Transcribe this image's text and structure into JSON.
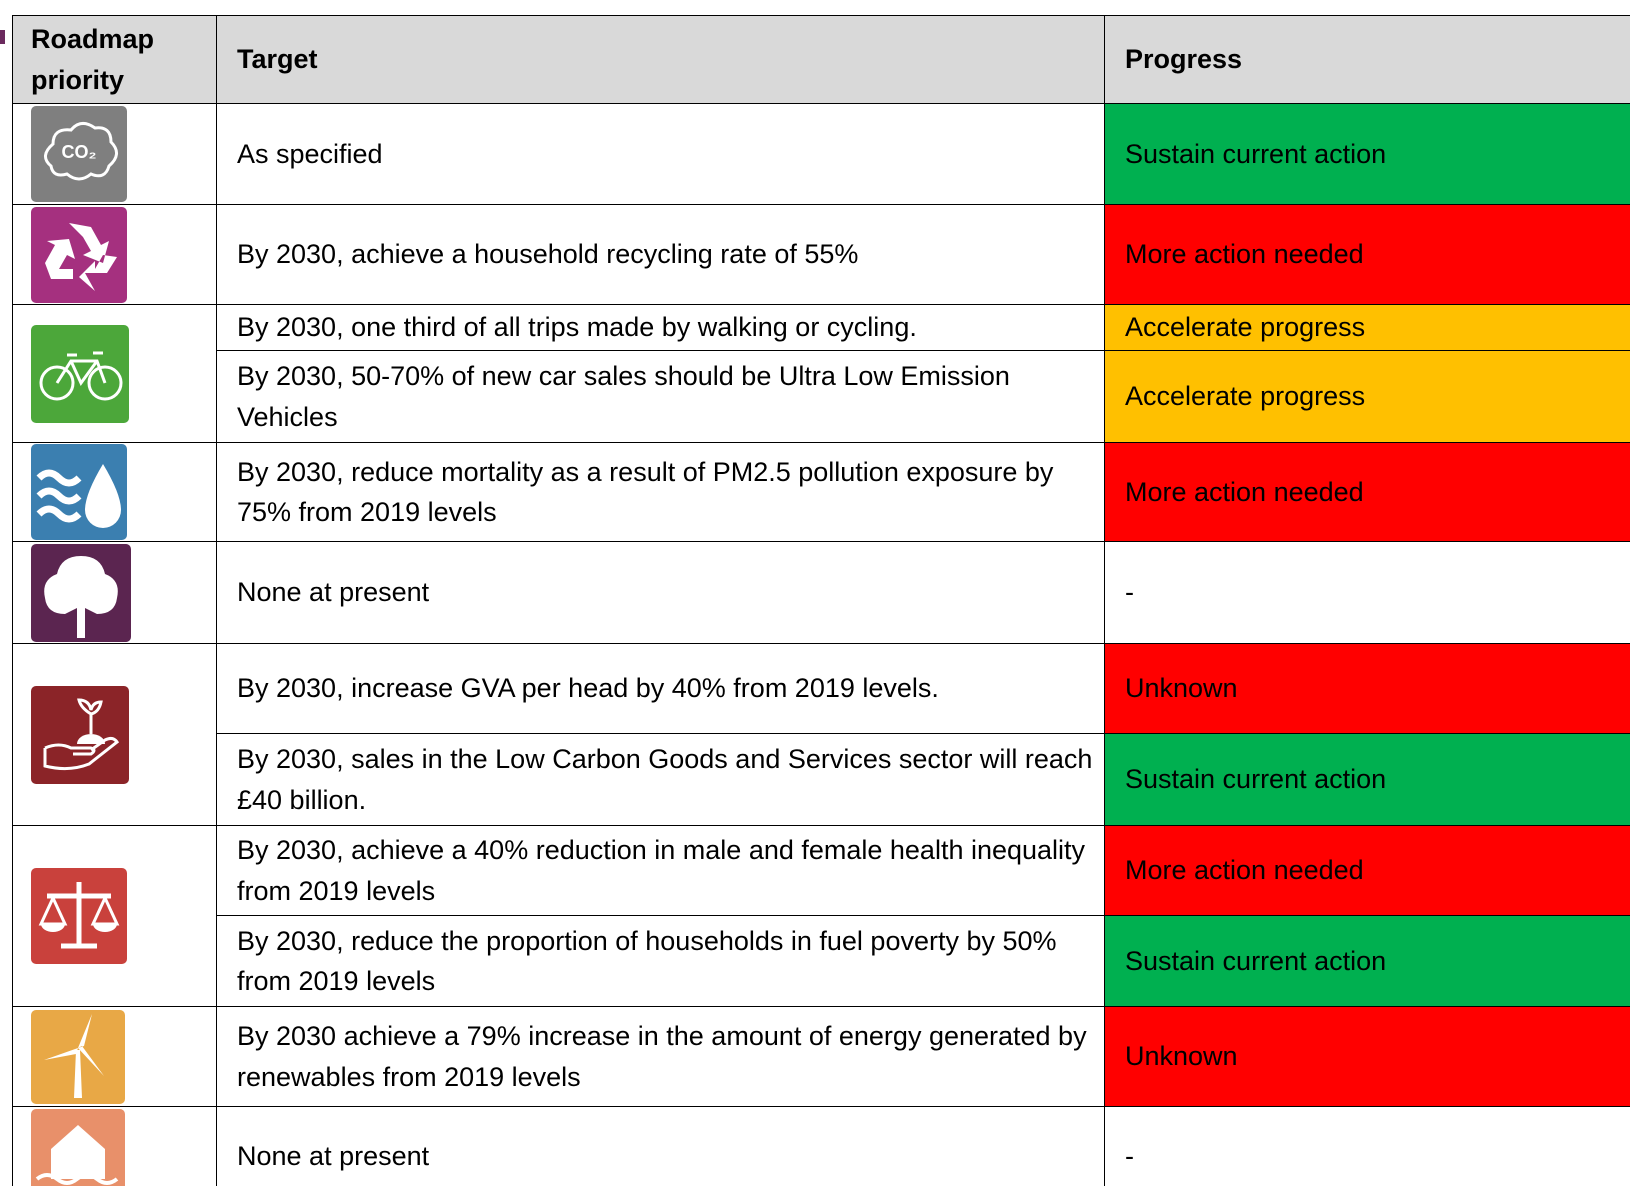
{
  "table": {
    "header": [
      "Roadmap priority",
      "Target",
      "Progress"
    ],
    "rows": [
      {
        "target": "As specified",
        "progress": "Sustain current action",
        "color": "#00b050"
      },
      {
        "target": "By 2030, achieve a household recycling rate of 55%",
        "progress": "More action needed",
        "color": "#ff0000"
      },
      {
        "target": "By 2030, one third of all trips made by walking or cycling.",
        "progress": "Accelerate progress",
        "color": "#ffc000"
      },
      {
        "target": "By 2030, 50-70% of new car sales should be Ultra Low Emission Vehicles",
        "progress": "Accelerate progress",
        "color": "#ffc000"
      },
      {
        "target": "By 2030, reduce mortality as a result of PM2.5 pollution exposure by 75% from 2019 levels",
        "progress": "More action needed",
        "color": "#ff0000"
      },
      {
        "target": "None at present",
        "progress": "-",
        "color": "#ffffff"
      },
      {
        "target": "By 2030, increase GVA per head by 40% from 2019 levels.",
        "progress": "Unknown",
        "color": "#ff0000"
      },
      {
        "target": "By 2030, sales in the Low Carbon Goods and Services sector will reach £40 billion.",
        "progress": "Sustain current action",
        "color": "#00b050"
      },
      {
        "target": "By 2030, achieve a 40% reduction in male and female health inequality from 2019 levels",
        "progress": "More action needed",
        "color": "#ff0000"
      },
      {
        "target": "By 2030, reduce the proportion of households in fuel poverty by 50% from 2019 levels",
        "progress": "Sustain current action",
        "color": "#00b050"
      },
      {
        "target": "By 2030 achieve a 79% increase in the amount of energy generated by renewables from 2019 levels",
        "progress": "Unknown",
        "color": "#ff0000"
      },
      {
        "target": "None at present",
        "progress": "-",
        "color": "#ffffff"
      }
    ]
  }
}
